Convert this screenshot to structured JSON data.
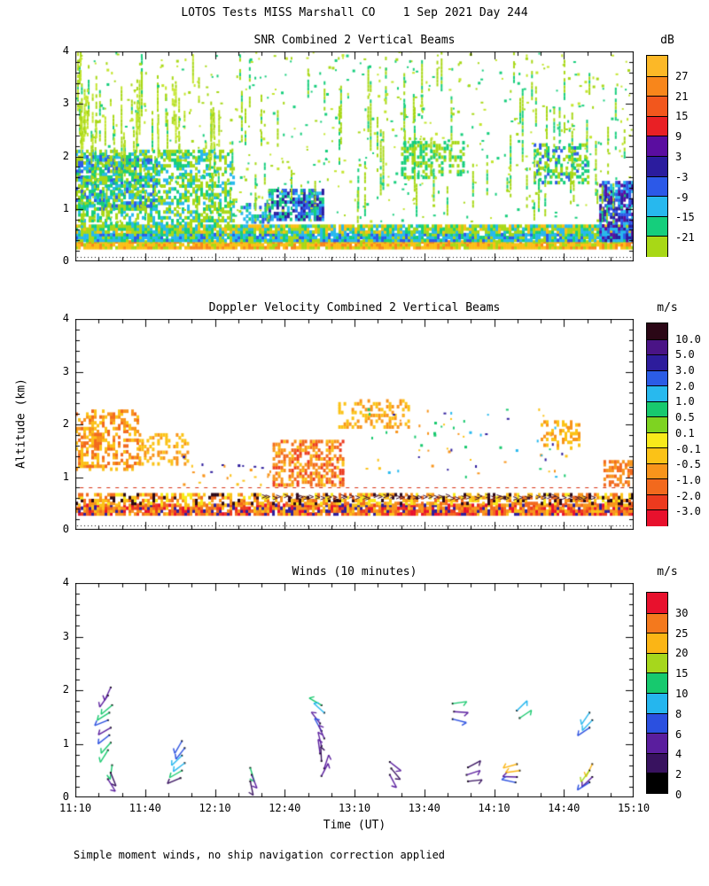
{
  "page": {
    "title": "LOTOS Tests MISS Marshall CO    1 Sep 2021 Day 244",
    "footer_note": "Simple moment winds, no ship navigation correction applied",
    "background": "#FFFFFF",
    "text_color": "#000000"
  },
  "chart_data": {
    "type": "multi-panel",
    "x_axis": {
      "label": "Time (UT)",
      "tick_labels": [
        "11:10",
        "11:40",
        "12:10",
        "12:40",
        "13:10",
        "13:40",
        "14:10",
        "14:40",
        "15:10"
      ],
      "range_hours": [
        11.1667,
        15.1667
      ],
      "major_tick_minutes": 30,
      "minor_tick_minutes": 10
    },
    "y_axis": {
      "label": "Altitude (km)",
      "tick_labels": [
        "0",
        "1",
        "2",
        "3",
        "4"
      ],
      "range_km": [
        0,
        4
      ],
      "minor_tick_km": 0.2
    },
    "panels": [
      {
        "id": "snr",
        "type": "heatmap",
        "title": "SNR Combined 2 Vertical Beams",
        "units": "dB",
        "colorbar": {
          "labels": [
            "27",
            "21",
            "15",
            "9",
            "3",
            "-3",
            "-9",
            "-15",
            "-21"
          ],
          "colors": [
            "#FCB827",
            "#F8861B",
            "#F2571D",
            "#E92025",
            "#5A0DA0",
            "#2B1C9E",
            "#2C59E8",
            "#27B8EE",
            "#15CE7C",
            "#A8D816"
          ]
        },
        "dotted_baseline_km": 0.09,
        "features": [
          {
            "kind": "mosaic",
            "t": [
              11.167,
              15.167
            ],
            "alt": [
              0.26,
              0.4
            ],
            "density": 0.95,
            "palette": [
              "#FBBF16",
              "#F8861B",
              "#A8D816",
              "#FBBF16"
            ]
          },
          {
            "kind": "mosaic",
            "t": [
              11.167,
              15.167
            ],
            "alt": [
              0.4,
              0.56
            ],
            "density": 0.95,
            "palette": [
              "#27B8EE",
              "#15CE7C",
              "#2C59E8",
              "#A8D816",
              "#27B8EE"
            ]
          },
          {
            "kind": "mosaic",
            "t": [
              11.167,
              15.167
            ],
            "alt": [
              0.56,
              0.72
            ],
            "density": 0.9,
            "palette": [
              "#A8D816",
              "#15CE7C",
              "#27B8EE",
              "#FBBF16",
              "#A8D816"
            ]
          },
          {
            "kind": "mosaic",
            "t": [
              11.167,
              12.3
            ],
            "alt": [
              0.72,
              2.1
            ],
            "density": 0.5,
            "palette": [
              "#A8D816",
              "#15CE7C",
              "#A8D816",
              "#27B8EE"
            ]
          },
          {
            "kind": "mosaic",
            "t": [
              11.167,
              11.75
            ],
            "alt": [
              1.0,
              2.0
            ],
            "density": 0.5,
            "palette": [
              "#15CE7C",
              "#27B8EE",
              "#2C59E8",
              "#A8D816"
            ]
          },
          {
            "kind": "mosaic",
            "t": [
              12.35,
              12.55
            ],
            "alt": [
              0.75,
              1.1
            ],
            "density": 0.5,
            "palette": [
              "#2C59E8",
              "#27B8EE",
              "#15CE7C"
            ]
          },
          {
            "kind": "mosaic",
            "t": [
              12.55,
              12.95
            ],
            "alt": [
              0.8,
              1.35
            ],
            "density": 0.75,
            "palette": [
              "#2B1C9E",
              "#2C59E8",
              "#27B8EE",
              "#15CE7C"
            ]
          },
          {
            "kind": "mosaic",
            "t": [
              13.5,
              13.95
            ],
            "alt": [
              1.6,
              2.3
            ],
            "density": 0.45,
            "palette": [
              "#15CE7C",
              "#A8D816"
            ]
          },
          {
            "kind": "mosaic",
            "t": [
              14.45,
              14.85
            ],
            "alt": [
              1.5,
              2.25
            ],
            "density": 0.45,
            "palette": [
              "#15CE7C",
              "#A8D816",
              "#2C59E8"
            ]
          },
          {
            "kind": "mosaic",
            "t": [
              14.92,
              15.167
            ],
            "alt": [
              0.4,
              1.55
            ],
            "density": 0.8,
            "palette": [
              "#2B1C9E",
              "#2C59E8",
              "#5A0DA0",
              "#27B8EE"
            ]
          },
          {
            "kind": "streaks",
            "t": [
              11.167,
              15.167
            ],
            "alt": [
              0.75,
              4.0
            ],
            "count": 110,
            "maxlen": 1.4,
            "palette": [
              "#A8D816",
              "#A8D816",
              "#15CE7C"
            ]
          },
          {
            "kind": "streaks",
            "t": [
              11.167,
              12.2
            ],
            "alt": [
              2.0,
              4.0
            ],
            "count": 40,
            "maxlen": 1.2,
            "palette": [
              "#A8D816",
              "#C3E52C"
            ]
          },
          {
            "kind": "speckle",
            "t": [
              11.167,
              15.167
            ],
            "alt": [
              0.75,
              4.0
            ],
            "count": 600,
            "palette": [
              "#A8D816",
              "#C3E52C",
              "#15CE7C"
            ]
          }
        ]
      },
      {
        "id": "doppler",
        "type": "heatmap",
        "title": "Doppler Velocity Combined 2 Vertical Beams",
        "units": "m/s",
        "colorbar": {
          "labels": [
            "10.0",
            "5.0",
            "3.0",
            "2.0",
            "1.0",
            "0.5",
            "0.1",
            "-0.1",
            "-0.5",
            "-1.0",
            "-2.0",
            "-3.0"
          ],
          "colors": [
            "#2B0716",
            "#4A1486",
            "#2D1C9C",
            "#2B5CE6",
            "#28B9EE",
            "#18C96E",
            "#7ED321",
            "#F8EA1B",
            "#FBC217",
            "#F8941B",
            "#F2691D",
            "#EC3A1E",
            "#E8112D"
          ]
        },
        "dotted_baseline_km": 0.09,
        "features": [
          {
            "kind": "dashline",
            "t": [
              11.2,
              15.1
            ],
            "alt": 0.8,
            "color": "#D93011"
          },
          {
            "kind": "mosaic",
            "t": [
              11.167,
              15.167
            ],
            "alt": [
              0.3,
              0.5
            ],
            "density": 0.92,
            "palette": [
              "#F8941B",
              "#F2691D",
              "#FBC217",
              "#EC3A1E",
              "#E8112D",
              "#2D1C9C",
              "#F8941B"
            ]
          },
          {
            "kind": "mosaic",
            "t": [
              11.167,
              15.167
            ],
            "alt": [
              0.5,
              0.72
            ],
            "density": 0.6,
            "palette": [
              "#FBC217",
              "#F8941B",
              "#F8EA1B",
              "#2B0716",
              "#F2691D"
            ]
          },
          {
            "kind": "arrows",
            "t": [
              12.5,
              14.9
            ],
            "alt": 0.62,
            "count": 60,
            "color": "#43112E"
          },
          {
            "kind": "mosaic",
            "t": [
              11.167,
              11.62
            ],
            "alt": [
              1.15,
              2.25
            ],
            "density": 0.5,
            "palette": [
              "#F8941B",
              "#FBC217",
              "#F2691D"
            ]
          },
          {
            "kind": "mosaic",
            "t": [
              11.62,
              11.98
            ],
            "alt": [
              1.25,
              1.85
            ],
            "density": 0.35,
            "palette": [
              "#F8941B",
              "#FBC217"
            ]
          },
          {
            "kind": "speckle",
            "t": [
              11.9,
              12.6
            ],
            "alt": [
              0.8,
              1.4
            ],
            "count": 25,
            "palette": [
              "#F8941B",
              "#2D1C9C",
              "#FBC217"
            ]
          },
          {
            "kind": "mosaic",
            "t": [
              12.58,
              13.08
            ],
            "alt": [
              0.85,
              1.7
            ],
            "density": 0.6,
            "palette": [
              "#F8941B",
              "#F2691D",
              "#FBC217",
              "#EC3A1E"
            ]
          },
          {
            "kind": "mosaic",
            "t": [
              13.05,
              13.55
            ],
            "alt": [
              1.95,
              2.45
            ],
            "density": 0.4,
            "palette": [
              "#FBC217",
              "#F8941B"
            ]
          },
          {
            "kind": "speckle",
            "t": [
              13.2,
              14.7
            ],
            "alt": [
              1.0,
              2.3
            ],
            "count": 70,
            "palette": [
              "#F8941B",
              "#FBC217",
              "#28B9EE",
              "#18C96E",
              "#2D1C9C"
            ]
          },
          {
            "kind": "mosaic",
            "t": [
              14.5,
              14.78
            ],
            "alt": [
              1.55,
              2.05
            ],
            "density": 0.35,
            "palette": [
              "#F8941B",
              "#FBC217"
            ]
          },
          {
            "kind": "mosaic",
            "t": [
              14.95,
              15.167
            ],
            "alt": [
              0.85,
              1.3
            ],
            "density": 0.5,
            "palette": [
              "#F8941B",
              "#F2691D"
            ]
          }
        ]
      },
      {
        "id": "winds",
        "type": "wind-barbs",
        "title": "Winds (10 minutes)",
        "units": "m/s",
        "colorbar": {
          "labels": [
            "30",
            "25",
            "20",
            "15",
            "10",
            "8",
            "6",
            "4",
            "2",
            "0"
          ],
          "colors": [
            "#E8112D",
            "#F4791D",
            "#FBB515",
            "#A6D71C",
            "#17C96E",
            "#25B6EE",
            "#2B50E0",
            "#5A1E9E",
            "#38125F",
            "#000000"
          ],
          "speed_thresholds": [
            30,
            25,
            20,
            15,
            10,
            8,
            6,
            4,
            2,
            0
          ],
          "last_label_at_bottom": true
        },
        "barbs": [
          [
            11.42,
            2.05,
            4,
            205
          ],
          [
            11.4,
            1.9,
            4,
            215
          ],
          [
            11.43,
            1.72,
            12,
            230
          ],
          [
            11.41,
            1.58,
            12,
            238
          ],
          [
            11.4,
            1.44,
            6,
            248
          ],
          [
            11.42,
            1.3,
            4,
            240
          ],
          [
            11.41,
            1.16,
            6,
            232
          ],
          [
            11.42,
            1.02,
            12,
            222
          ],
          [
            11.4,
            0.88,
            12,
            212
          ],
          [
            11.43,
            0.6,
            12,
            188
          ],
          [
            11.42,
            0.46,
            2,
            158
          ],
          [
            11.4,
            0.34,
            4,
            148
          ],
          [
            11.93,
            1.05,
            6,
            210
          ],
          [
            11.95,
            0.92,
            6,
            218
          ],
          [
            11.93,
            0.78,
            9,
            226
          ],
          [
            11.95,
            0.64,
            9,
            233
          ],
          [
            11.93,
            0.5,
            12,
            240
          ],
          [
            11.92,
            0.36,
            2,
            247
          ],
          [
            12.42,
            0.55,
            12,
            163
          ],
          [
            12.43,
            0.42,
            4,
            158
          ],
          [
            12.42,
            0.3,
            2,
            168
          ],
          [
            12.93,
            1.72,
            12,
            300
          ],
          [
            12.95,
            1.58,
            9,
            312
          ],
          [
            12.92,
            1.38,
            4,
            322
          ],
          [
            12.93,
            1.24,
            6,
            331
          ],
          [
            12.95,
            1.1,
            4,
            337
          ],
          [
            12.93,
            0.96,
            4,
            346
          ],
          [
            12.92,
            0.82,
            4,
            352
          ],
          [
            12.93,
            0.68,
            2,
            357
          ],
          [
            12.95,
            0.54,
            4,
            18
          ],
          [
            12.93,
            0.4,
            4,
            28
          ],
          [
            13.42,
            0.66,
            4,
            128
          ],
          [
            13.43,
            0.54,
            2,
            140
          ],
          [
            13.42,
            0.42,
            4,
            152
          ],
          [
            13.87,
            1.75,
            12,
            82
          ],
          [
            13.88,
            1.6,
            4,
            94
          ],
          [
            13.87,
            1.46,
            6,
            104
          ],
          [
            13.98,
            0.56,
            2,
            62
          ],
          [
            13.97,
            0.42,
            4,
            72
          ],
          [
            13.98,
            0.3,
            2,
            84
          ],
          [
            14.33,
            1.62,
            9,
            46
          ],
          [
            14.35,
            1.48,
            12,
            56
          ],
          [
            14.33,
            0.62,
            21,
            254
          ],
          [
            14.35,
            0.5,
            21,
            262
          ],
          [
            14.33,
            0.38,
            4,
            272
          ],
          [
            14.32,
            0.28,
            6,
            282
          ],
          [
            14.85,
            1.58,
            9,
            214
          ],
          [
            14.87,
            1.44,
            9,
            224
          ],
          [
            14.85,
            1.3,
            6,
            236
          ],
          [
            14.87,
            0.62,
            21,
            206
          ],
          [
            14.85,
            0.5,
            17,
            216
          ],
          [
            14.87,
            0.38,
            4,
            226
          ],
          [
            14.85,
            0.28,
            6,
            238
          ]
        ]
      }
    ]
  }
}
